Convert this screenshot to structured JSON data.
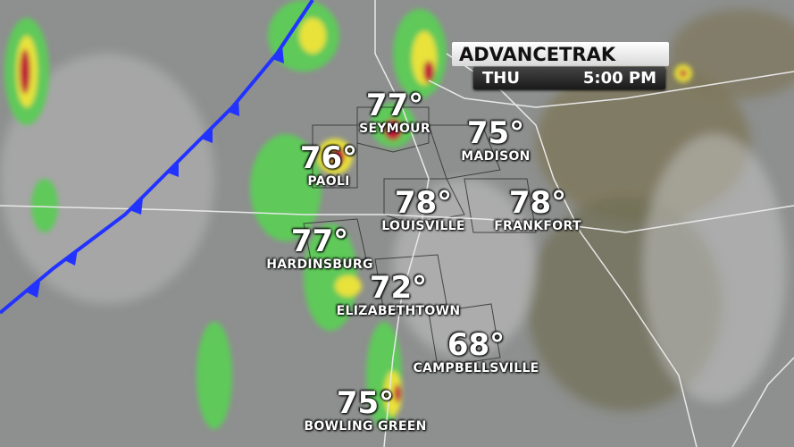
{
  "banner": {
    "title": "ADVANCETRAK",
    "day": "THU",
    "time": "5:00 PM"
  },
  "colors": {
    "front": "#2233ff",
    "radar_light": "#5fc95a",
    "radar_heavy": "#e8e23a",
    "radar_intense": "#c0143a",
    "land": "#8f9190"
  },
  "cities": [
    {
      "name": "SEYMOUR",
      "temp": "77°"
    },
    {
      "name": "PAOLI",
      "temp": "76°"
    },
    {
      "name": "MADISON",
      "temp": "75°"
    },
    {
      "name": "LOUISVILLE",
      "temp": "78°"
    },
    {
      "name": "FRANKFORT",
      "temp": "78°"
    },
    {
      "name": "HARDINSBURG",
      "temp": "77°"
    },
    {
      "name": "ELIZABETHTOWN",
      "temp": "72°"
    },
    {
      "name": "CAMPBELLSVILLE",
      "temp": "68°"
    },
    {
      "name": "BOWLING GREEN",
      "temp": "75°"
    }
  ]
}
